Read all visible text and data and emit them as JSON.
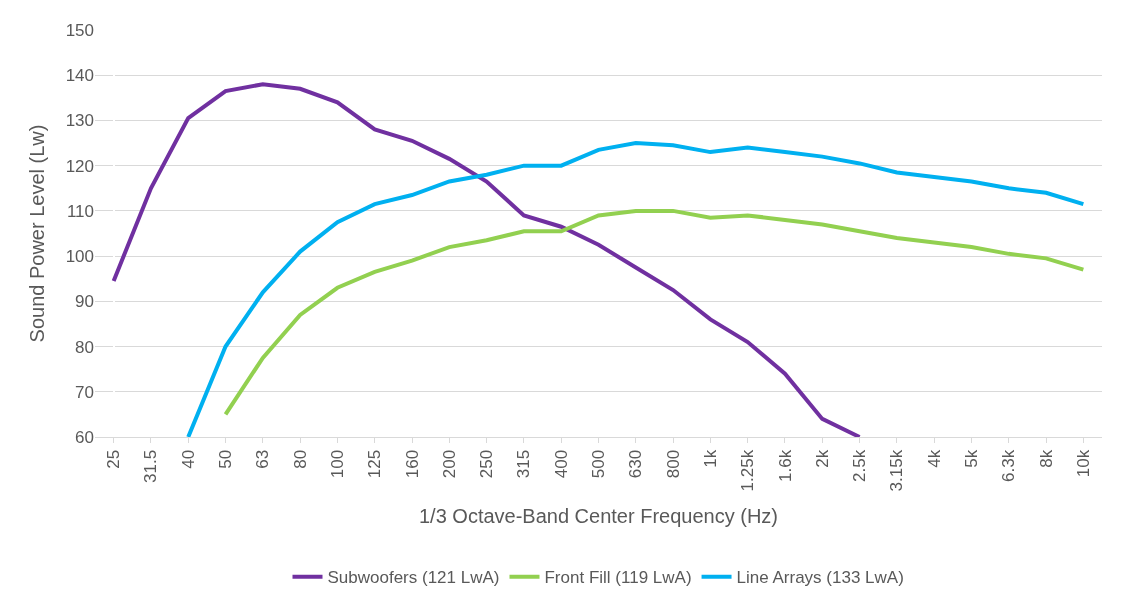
{
  "chart_data": {
    "type": "line",
    "xlabel": "1/3 Octave-Band Center Frequency (Hz)",
    "ylabel": "Sound Power Level (Lw)",
    "categories": [
      "25",
      "31.5",
      "40",
      "50",
      "63",
      "80",
      "100",
      "125",
      "160",
      "200",
      "250",
      "315",
      "400",
      "500",
      "630",
      "800",
      "1k",
      "1.25k",
      "1.6k",
      "2k",
      "2.5k",
      "3.15k",
      "4k",
      "5k",
      "6.3k",
      "8k",
      "10k"
    ],
    "series": [
      {
        "name": "Subwoofers (121 LwA)",
        "color": "#7030a0",
        "values": [
          94.5,
          115,
          130.5,
          136.5,
          138,
          137,
          134,
          128,
          125.5,
          121.5,
          116.5,
          109,
          106.5,
          102.5,
          97.5,
          92.5,
          86,
          81,
          74,
          64,
          60,
          null,
          null,
          null,
          null,
          null,
          null
        ]
      },
      {
        "name": "Front Fill (119 LwA)",
        "color": "#92d050",
        "values": [
          null,
          null,
          null,
          65,
          77.5,
          87,
          93,
          96.5,
          99,
          102,
          103.5,
          105.5,
          105.5,
          109,
          110,
          110,
          108.5,
          109,
          108,
          107,
          105.5,
          104,
          103,
          102,
          100.5,
          99.5,
          97
        ]
      },
      {
        "name": "Line Arrays (133 LwA)",
        "color": "#00b0f0",
        "values": [
          null,
          null,
          60,
          80,
          92,
          101,
          107.5,
          111.5,
          113.5,
          116.5,
          118,
          120,
          120,
          123.5,
          125,
          124.5,
          123,
          124,
          123,
          122,
          120.5,
          118.5,
          117.5,
          116.5,
          115,
          114,
          111.5
        ]
      }
    ],
    "ylim": [
      60,
      150
    ],
    "yticks": [
      60,
      70,
      80,
      90,
      100,
      110,
      120,
      130,
      140,
      150
    ],
    "grid": "y",
    "legend": "bottom",
    "marker": "none",
    "line_style": "solid"
  }
}
